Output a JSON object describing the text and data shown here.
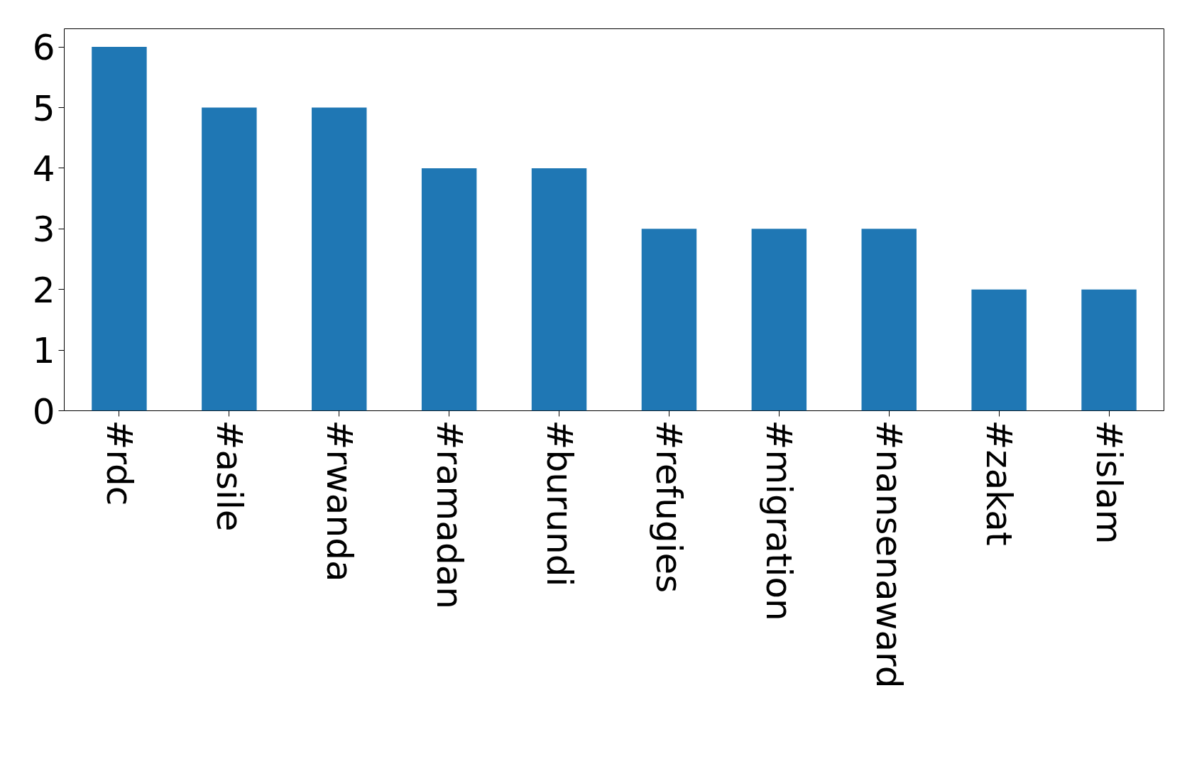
{
  "chart_data": {
    "type": "bar",
    "categories": [
      "#rdc",
      "#asile",
      "#rwanda",
      "#ramadan",
      "#burundi",
      "#refugies",
      "#migration",
      "#nansenaward",
      "#zakat",
      "#islam"
    ],
    "values": [
      6,
      5,
      5,
      4,
      4,
      3,
      3,
      3,
      2,
      2
    ],
    "color": "#1f77b4",
    "ylim": [
      0,
      6.3
    ],
    "yticks": [
      0,
      1,
      2,
      3,
      4,
      5,
      6
    ],
    "grid": false
  }
}
